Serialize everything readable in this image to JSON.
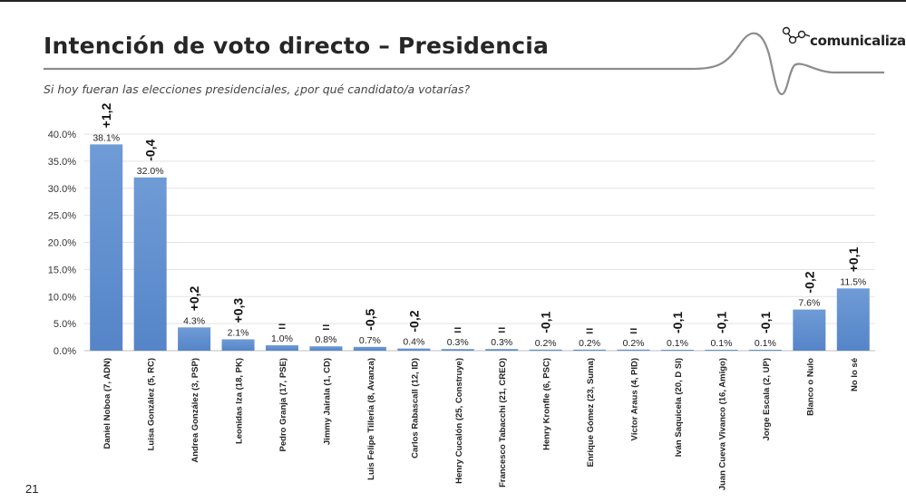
{
  "header": {
    "title": "Intención de voto directo – Presidencia",
    "subtitle": "Si hoy fueran las elecciones presidenciales, ¿por qué candidato/a votarías?",
    "logo_text": "comunicaliza",
    "page_number": "21"
  },
  "colors": {
    "bar": "#6f9bd6",
    "bar_dark": "#5585c8",
    "grid": "#e3e3e3",
    "wave": "#8c8c8c"
  },
  "chart_data": {
    "type": "bar",
    "title": "",
    "ylim": [
      0,
      40
    ],
    "yticks": [
      "0.0%",
      "5.0%",
      "10.0%",
      "15.0%",
      "20.0%",
      "25.0%",
      "30.0%",
      "35.0%",
      "40.0%"
    ],
    "grid": true,
    "categories": [
      "Daniel Noboa (7, ADN)",
      "Luisa González (5, RC)",
      "Andrea González (3, PSP)",
      "Leonidas Iza (18, PK)",
      "Pedro Granja (17, PSE)",
      "Jimmy Jairala (1, CD)",
      "Luis Felipe Tillería (8, Avanza)",
      "Carlos Rabascall (12, ID)",
      "Henry Cucalón (25, Construye)",
      "Francesco Tabacchi (21, CREO)",
      "Henry Kronfle (6, PSC)",
      "Enrique Gómez (23, Suma)",
      "Víctor Araus (4, PID)",
      "Iván Saquicela (20, D SI)",
      "Juan Cueva Vivanco (16, Amigo)",
      "Jorge Escala (2, UP)",
      "Blanco o Nulo",
      "No lo sé"
    ],
    "values": [
      38.1,
      32.0,
      4.3,
      2.1,
      1.0,
      0.8,
      0.7,
      0.4,
      0.3,
      0.3,
      0.2,
      0.2,
      0.2,
      0.1,
      0.1,
      0.1,
      7.6,
      11.5
    ],
    "value_labels": [
      "38.1%",
      "32.0%",
      "4.3%",
      "2.1%",
      "1.0%",
      "0.8%",
      "0.7%",
      "0.4%",
      "0.3%",
      "0.3%",
      "0.2%",
      "0.2%",
      "0.2%",
      "0.1%",
      "0.1%",
      "0.1%",
      "7.6%",
      "11.5%"
    ],
    "changes": [
      "+1,2",
      "-0,4",
      "+0,2",
      "+0,3",
      "=",
      "=",
      "-0,5",
      "-0,2",
      "=",
      "=",
      "-0,1",
      "=",
      "=",
      "-0,1",
      "-0,1",
      "-0,1",
      "-0,2",
      "+0,1"
    ]
  }
}
